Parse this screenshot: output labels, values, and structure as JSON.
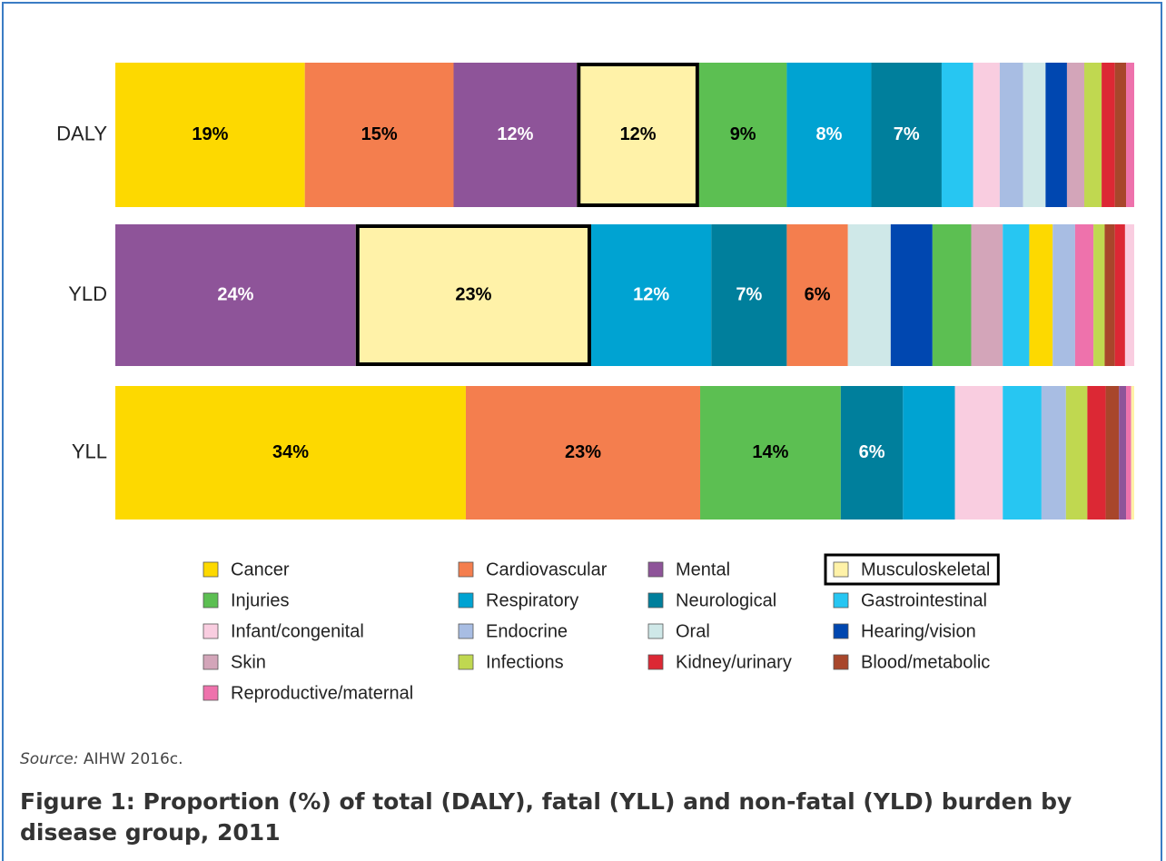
{
  "chart_data": {
    "type": "stacked-bar-horizontal",
    "xlim": [
      0,
      100
    ],
    "legend": [
      {
        "name": "Cancer",
        "color": "#fdd900"
      },
      {
        "name": "Cardiovascular",
        "color": "#f47e4e"
      },
      {
        "name": "Mental",
        "color": "#8e5499"
      },
      {
        "name": "Musculoskeletal",
        "color": "#fff2a8",
        "highlight": true
      },
      {
        "name": "Injuries",
        "color": "#5cbf52"
      },
      {
        "name": "Respiratory",
        "color": "#00a3d2"
      },
      {
        "name": "Neurological",
        "color": "#007f9c"
      },
      {
        "name": "Gastrointestinal",
        "color": "#27c6f2"
      },
      {
        "name": "Infant/congenital",
        "color": "#f9cde0"
      },
      {
        "name": "Endocrine",
        "color": "#a8bde3"
      },
      {
        "name": "Oral",
        "color": "#cfe8e8"
      },
      {
        "name": "Hearing/vision",
        "color": "#0047b0"
      },
      {
        "name": "Skin",
        "color": "#d3a5b9"
      },
      {
        "name": "Infections",
        "color": "#c0d850"
      },
      {
        "name": "Kidney/urinary",
        "color": "#dc2834"
      },
      {
        "name": "Blood/metabolic",
        "color": "#a8462b"
      },
      {
        "name": "Reproductive/maternal",
        "color": "#ee72ac"
      }
    ],
    "rows": [
      {
        "name": "DALY",
        "segments": [
          {
            "value": 18.6,
            "value_label": "19%",
            "color": "#fdd900"
          },
          {
            "value": 14.6,
            "value_label": "15%",
            "color": "#f47e4e"
          },
          {
            "value": 12.1,
            "value_label": "12%",
            "color": "#8e5499"
          },
          {
            "value": 12.0,
            "value_label": "12%",
            "color": "#fff2a8",
            "highlight": true
          },
          {
            "value": 8.6,
            "value_label": "9%",
            "color": "#5cbf52"
          },
          {
            "value": 8.3,
            "value_label": "8%",
            "color": "#00a3d2"
          },
          {
            "value": 6.9,
            "value_label": "7%",
            "color": "#007f9c"
          },
          {
            "value": 3.1,
            "color": "#27c6f2"
          },
          {
            "value": 2.6,
            "color": "#f9cde0"
          },
          {
            "value": 2.3,
            "color": "#a8bde3"
          },
          {
            "value": 2.2,
            "color": "#cfe8e8"
          },
          {
            "value": 2.1,
            "color": "#0047b0"
          },
          {
            "value": 1.7,
            "color": "#d3a5b9"
          },
          {
            "value": 1.7,
            "color": "#c0d850"
          },
          {
            "value": 1.3,
            "color": "#dc2834"
          },
          {
            "value": 1.1,
            "color": "#a8462b"
          },
          {
            "value": 0.8,
            "color": "#ee72ac"
          }
        ]
      },
      {
        "name": "YLD",
        "segments": [
          {
            "value": 23.6,
            "value_label": "24%",
            "color": "#8e5499"
          },
          {
            "value": 23.1,
            "value_label": "23%",
            "color": "#fff2a8",
            "highlight": true
          },
          {
            "value": 11.8,
            "value_label": "12%",
            "color": "#00a3d2"
          },
          {
            "value": 7.4,
            "value_label": "7%",
            "color": "#007f9c"
          },
          {
            "value": 6.0,
            "value_label": "6%",
            "color": "#f47e4e"
          },
          {
            "value": 4.2,
            "color": "#cfe8e8"
          },
          {
            "value": 4.1,
            "color": "#0047b0"
          },
          {
            "value": 3.8,
            "color": "#5cbf52"
          },
          {
            "value": 3.1,
            "color": "#d3a5b9"
          },
          {
            "value": 2.6,
            "color": "#27c6f2"
          },
          {
            "value": 2.3,
            "color": "#fdd900"
          },
          {
            "value": 2.2,
            "color": "#a8bde3"
          },
          {
            "value": 1.8,
            "color": "#ee72ac"
          },
          {
            "value": 1.1,
            "color": "#c0d850"
          },
          {
            "value": 1.0,
            "color": "#a8462b"
          },
          {
            "value": 1.0,
            "color": "#dc2834"
          },
          {
            "value": 0.9,
            "color": "#f9cde0"
          }
        ]
      },
      {
        "name": "YLL",
        "segments": [
          {
            "value": 34.4,
            "value_label": "34%",
            "color": "#fdd900"
          },
          {
            "value": 23.0,
            "value_label": "23%",
            "color": "#f47e4e"
          },
          {
            "value": 13.8,
            "value_label": "14%",
            "color": "#5cbf52"
          },
          {
            "value": 6.1,
            "value_label": "6%",
            "color": "#007f9c"
          },
          {
            "value": 5.1,
            "color": "#00a3d2"
          },
          {
            "value": 4.7,
            "color": "#f9cde0"
          },
          {
            "value": 3.8,
            "color": "#27c6f2"
          },
          {
            "value": 2.4,
            "color": "#a8bde3"
          },
          {
            "value": 2.1,
            "color": "#c0d850"
          },
          {
            "value": 1.8,
            "color": "#dc2834"
          },
          {
            "value": 1.3,
            "color": "#a8462b"
          },
          {
            "value": 0.7,
            "color": "#8e5499"
          },
          {
            "value": 0.5,
            "color": "#ee72ac"
          },
          {
            "value": 0.3,
            "color": "#fff2a8"
          }
        ]
      }
    ],
    "source_label": "Source:",
    "source_text": "AIHW 2016c.",
    "figure_label": "Figure 1:",
    "title": "Proportion (%) of total (DALY), fatal (YLL) and non-fatal (YLD) burden by disease group, 2011"
  }
}
